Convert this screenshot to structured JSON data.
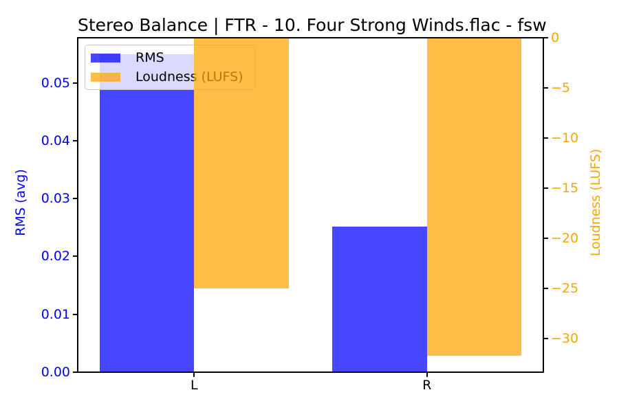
{
  "chart_data": {
    "type": "bar",
    "title": "Stereo Balance | FTR - 10. Four Strong Winds.flac - fsw",
    "categories": [
      "L",
      "R"
    ],
    "series": [
      {
        "name": "RMS",
        "axis": "left",
        "color": "#0000ff",
        "values": [
          0.055,
          0.0252
        ]
      },
      {
        "name": "Loudness (LUFS)",
        "axis": "right",
        "color": "#ffa500",
        "values": [
          -25.0,
          -31.7
        ]
      }
    ],
    "left_axis": {
      "label": "RMS (avg)",
      "color": "#0000ff",
      "ylim": [
        0,
        0.0578
      ],
      "tick_values": [
        0,
        0.01,
        0.02,
        0.03,
        0.04,
        0.05
      ],
      "tick_labels": [
        "0.00",
        "0.01",
        "0.02",
        "0.03",
        "0.04",
        "0.05"
      ]
    },
    "right_axis": {
      "label": "Loudness (LUFS)",
      "color": "#ffa500",
      "ylim": [
        -33.35,
        0
      ],
      "tick_values": [
        0,
        -5,
        -10,
        -15,
        -20,
        -25,
        -30
      ],
      "tick_labels": [
        "0",
        "−5",
        "−10",
        "−15",
        "−20",
        "−25",
        "−30"
      ]
    },
    "x_axis": {
      "tick_labels": [
        "L",
        "R"
      ]
    },
    "legend": {
      "position": "upper left"
    },
    "style": {
      "bar_fill_alpha": 0.72,
      "background": "#ffffff",
      "spine_color": "#000000"
    },
    "grid": false
  }
}
